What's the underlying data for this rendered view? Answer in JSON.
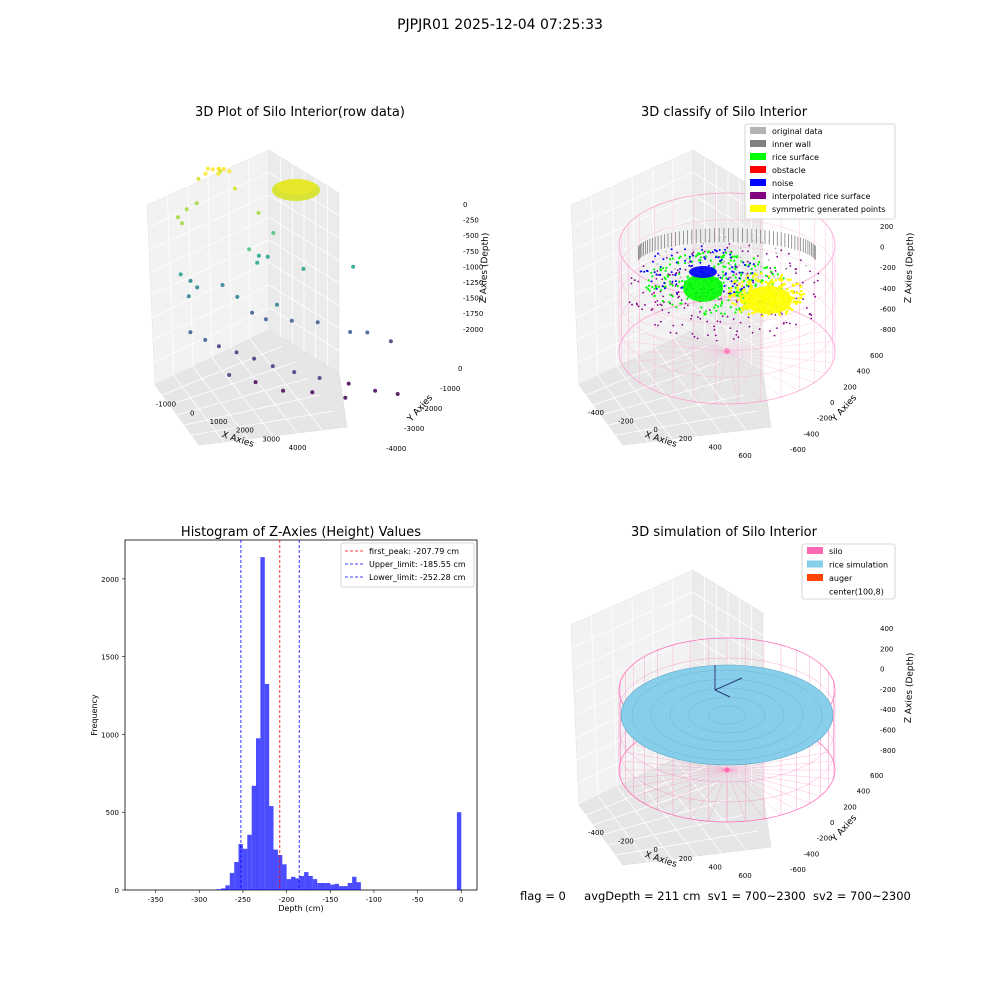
{
  "figure_title": "PJPJR01 2025-12-04 07:25:33",
  "status_line": {
    "flag": "flag = 0",
    "avg": "avgDepth = 211 cm",
    "sv1": "sv1 = 700~2300",
    "sv2": "sv2 = 700~2300"
  },
  "chart_data": [
    {
      "type": "scatter",
      "panel": "top-left",
      "title": "3D Plot of Silo Interior(row data)",
      "xlabel": "X Axies",
      "ylabel": "Y Axies",
      "zlabel": "Z Axies (Depth)",
      "x_ticks": [
        "-1000",
        "0",
        "1000",
        "2000",
        "3000",
        "4000"
      ],
      "y_ticks": [
        "0",
        "-1000",
        "-2000",
        "-3000",
        "-4000"
      ],
      "z_ticks": [
        "0",
        "-250",
        "-500",
        "-750",
        "-1000",
        "-1250",
        "-1500",
        "-1750",
        "-2000"
      ],
      "xlim": [
        -1200,
        4500
      ],
      "ylim": [
        -4500,
        600
      ],
      "zlim": [
        -2200,
        100
      ],
      "colormap": "viridis",
      "grid": true,
      "points": [
        {
          "x": 0,
          "y": 0,
          "z": 0
        },
        {
          "x": 150,
          "y": 0,
          "z": 0
        },
        {
          "x": 300,
          "y": 50,
          "z": -10
        },
        {
          "x": -100,
          "y": 100,
          "z": -5
        },
        {
          "x": 200,
          "y": 150,
          "z": -20
        },
        {
          "x": 400,
          "y": -100,
          "z": -15
        },
        {
          "x": 100,
          "y": -150,
          "z": -30
        },
        {
          "x": -200,
          "y": -50,
          "z": -40
        },
        {
          "x": 250,
          "y": 200,
          "z": -60
        },
        {
          "x": -300,
          "y": 250,
          "z": -150
        },
        {
          "x": 500,
          "y": -250,
          "z": -200
        },
        {
          "x": -500,
          "y": -300,
          "z": -350
        },
        {
          "x": -700,
          "y": -100,
          "z": -450
        },
        {
          "x": -900,
          "y": 0,
          "z": -560
        },
        {
          "x": -850,
          "y": -200,
          "z": -600
        },
        {
          "x": 1100,
          "y": -300,
          "z": -500
        },
        {
          "x": 1400,
          "y": -600,
          "z": -700
        },
        {
          "x": 800,
          "y": -500,
          "z": -900
        },
        {
          "x": 1000,
          "y": -700,
          "z": -950
        },
        {
          "x": 1200,
          "y": -800,
          "z": -950
        },
        {
          "x": 900,
          "y": -900,
          "z": -1000
        },
        {
          "x": 2100,
          "y": -900,
          "z": -1100
        },
        {
          "x": 3300,
          "y": -1200,
          "z": -1050
        },
        {
          "x": -1000,
          "y": -600,
          "z": -1150
        },
        {
          "x": -800,
          "y": -800,
          "z": -1200
        },
        {
          "x": -600,
          "y": -700,
          "z": -1300
        },
        {
          "x": -900,
          "y": -1000,
          "z": -1350
        },
        {
          "x": 0,
          "y": -900,
          "z": -1250
        },
        {
          "x": 300,
          "y": -1200,
          "z": -1350
        },
        {
          "x": 600,
          "y": -1500,
          "z": -1500
        },
        {
          "x": 900,
          "y": -1700,
          "z": -1550
        },
        {
          "x": 1300,
          "y": -1300,
          "z": -1450
        },
        {
          "x": 1600,
          "y": -1600,
          "z": -1600
        },
        {
          "x": 2300,
          "y": -1500,
          "z": -1650
        },
        {
          "x": 3000,
          "y": -2000,
          "z": -1700
        },
        {
          "x": 3500,
          "y": -1800,
          "z": -1750
        },
        {
          "x": 4000,
          "y": -2200,
          "z": -1800
        },
        {
          "x": -1000,
          "y": -1500,
          "z": -1700
        },
        {
          "x": -700,
          "y": -1800,
          "z": -1750
        },
        {
          "x": -400,
          "y": -2000,
          "z": -1800
        },
        {
          "x": 0,
          "y": -2200,
          "z": -1850
        },
        {
          "x": 400,
          "y": -2400,
          "z": -1900
        },
        {
          "x": 800,
          "y": -2700,
          "z": -1950
        },
        {
          "x": 1300,
          "y": -2900,
          "z": -2000
        },
        {
          "x": 1900,
          "y": -3100,
          "z": -2050
        },
        {
          "x": 2600,
          "y": -3300,
          "z": -2100
        },
        {
          "x": 3200,
          "y": -3600,
          "z": -2150
        },
        {
          "x": 3700,
          "y": -3900,
          "z": -2150
        },
        {
          "x": -300,
          "y": -2600,
          "z": -2050
        },
        {
          "x": 300,
          "y": -2900,
          "z": -2100
        },
        {
          "x": 900,
          "y": -3300,
          "z": -2150
        },
        {
          "x": 1600,
          "y": -3500,
          "z": -2150
        },
        {
          "x": 2400,
          "y": -3700,
          "z": -2200
        }
      ]
    },
    {
      "type": "scatter",
      "panel": "top-right",
      "title": "3D classify of Silo Interior",
      "xlabel": "X Axies",
      "ylabel": "Y Axies",
      "zlabel": "Z Axies (Depth)",
      "x_ticks": [
        "-400",
        "-200",
        "0",
        "200",
        "400",
        "600"
      ],
      "y_ticks": [
        "600",
        "400",
        "200",
        "0",
        "-200",
        "-400",
        "-600"
      ],
      "z_ticks": [
        "200",
        "0",
        "-200",
        "-400",
        "-600",
        "-800"
      ],
      "xlim": [
        -550,
        700
      ],
      "ylim": [
        -650,
        650
      ],
      "zlim": [
        -900,
        300
      ],
      "grid": true,
      "legend_position": "top-right",
      "series": [
        {
          "name": "original data",
          "color": "#b3b3b3"
        },
        {
          "name": "inner wall",
          "color": "#808080"
        },
        {
          "name": "rice surface",
          "color": "#00ff00"
        },
        {
          "name": "obstacle",
          "color": "#ff0000"
        },
        {
          "name": "noise",
          "color": "#0000ff"
        },
        {
          "name": "interpolated rice surface",
          "color": "#800080"
        },
        {
          "name": "symmetric generated points",
          "color": "#ffff00"
        }
      ]
    },
    {
      "type": "bar",
      "panel": "bottom-left",
      "title": "Histogram of Z-Axies (Height) Values",
      "xlabel": "Depth (cm)",
      "ylabel": "Frequency",
      "xlim": [
        -385,
        18
      ],
      "ylim": [
        0,
        2250
      ],
      "x_ticks": [
        -350,
        -300,
        -250,
        -200,
        -150,
        -100,
        -50,
        0
      ],
      "y_ticks": [
        0,
        500,
        1000,
        1500,
        2000
      ],
      "bin_width": 5,
      "color": "#0000ff",
      "bins": [
        {
          "x": -280,
          "value": 5
        },
        {
          "x": -275,
          "value": 10
        },
        {
          "x": -270,
          "value": 30
        },
        {
          "x": -265,
          "value": 110
        },
        {
          "x": -260,
          "value": 180
        },
        {
          "x": -255,
          "value": 295
        },
        {
          "x": -250,
          "value": 265
        },
        {
          "x": -245,
          "value": 355
        },
        {
          "x": -240,
          "value": 670
        },
        {
          "x": -235,
          "value": 975
        },
        {
          "x": -230,
          "value": 2140
        },
        {
          "x": -225,
          "value": 1325
        },
        {
          "x": -220,
          "value": 540
        },
        {
          "x": -215,
          "value": 260
        },
        {
          "x": -210,
          "value": 225
        },
        {
          "x": -205,
          "value": 165
        },
        {
          "x": -200,
          "value": 70
        },
        {
          "x": -195,
          "value": 85
        },
        {
          "x": -190,
          "value": 75
        },
        {
          "x": -185,
          "value": 90
        },
        {
          "x": -180,
          "value": 115
        },
        {
          "x": -175,
          "value": 90
        },
        {
          "x": -170,
          "value": 70
        },
        {
          "x": -165,
          "value": 45
        },
        {
          "x": -160,
          "value": 45
        },
        {
          "x": -155,
          "value": 45
        },
        {
          "x": -150,
          "value": 35
        },
        {
          "x": -145,
          "value": 40
        },
        {
          "x": -140,
          "value": 25
        },
        {
          "x": -135,
          "value": 25
        },
        {
          "x": -130,
          "value": 45
        },
        {
          "x": -125,
          "value": 85
        },
        {
          "x": -120,
          "value": 50
        },
        {
          "x": -5,
          "value": 500
        }
      ],
      "lines": [
        {
          "name": "first_peak: -207.79 cm",
          "x": -207.79,
          "color": "#ff0000"
        },
        {
          "name": "Upper_limit: -185.55 cm",
          "x": -185.55,
          "color": "#0000ff"
        },
        {
          "name": "Lower_limit: -252.28 cm",
          "x": -252.28,
          "color": "#0000ff"
        }
      ],
      "legend_position": "top-right"
    },
    {
      "type": "scatter",
      "panel": "bottom-right",
      "title": "3D simulation of Silo Interior",
      "xlabel": "X Axies",
      "ylabel": "Y Axies",
      "zlabel": "Z Axies (Depth)",
      "x_ticks": [
        "-400",
        "-200",
        "0",
        "200",
        "400",
        "600"
      ],
      "y_ticks": [
        "600",
        "400",
        "200",
        "0",
        "-200",
        "-400",
        "-600"
      ],
      "z_ticks": [
        "400",
        "200",
        "0",
        "-200",
        "-400",
        "-600",
        "-800"
      ],
      "grid": true,
      "legend_position": "top-right",
      "series": [
        {
          "name": "silo",
          "color": "#ff69b4"
        },
        {
          "name": "rice simulation",
          "color": "#87ceeb"
        },
        {
          "name": "auger",
          "color": "#ff4500"
        },
        {
          "name": "center(100,8)",
          "color": "#ffffff"
        }
      ]
    }
  ]
}
